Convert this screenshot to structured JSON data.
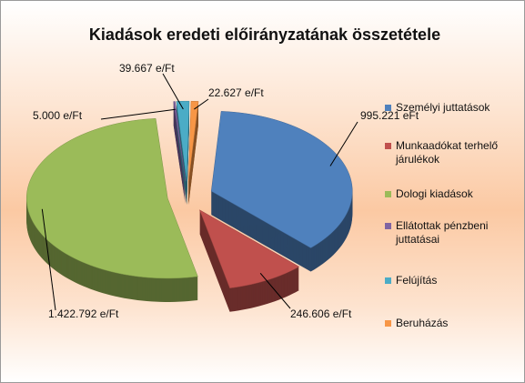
{
  "chart_data": {
    "type": "pie",
    "title": "Kiadások eredeti előirányzatának összetétele",
    "categories": [
      "Személyi juttatások",
      "Munkaadókat terhelő járulékok",
      "Dologi kiadások",
      "Ellátottak pénzbeni juttatásai",
      "Felújítás",
      "Beruházás"
    ],
    "values": [
      995221,
      246606,
      1422792,
      5000,
      39667,
      22627
    ],
    "value_labels": [
      "995.221 eFt",
      "246.606 e/Ft",
      "1.422.792 e/Ft",
      "5.000 e/Ft",
      "39.667 e/Ft",
      "22.627 e/Ft"
    ],
    "colors": [
      "#4f81bd",
      "#c0504d",
      "#9bbb59",
      "#8064a2",
      "#4bacc6",
      "#f79646"
    ],
    "legend": "right"
  }
}
